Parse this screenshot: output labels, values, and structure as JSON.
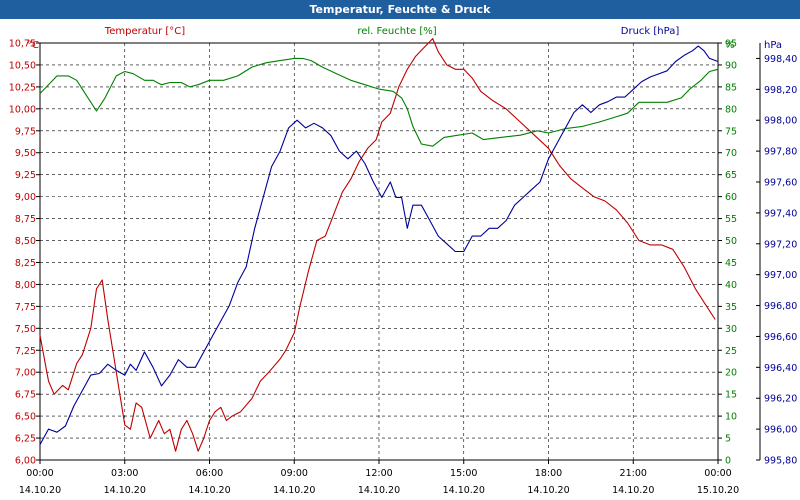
{
  "chart_data": {
    "type": "line",
    "title": "Temperatur, Feuchte & Druck",
    "colors": {
      "temperature": "#c00000",
      "humidity": "#008000",
      "pressure": "#000099",
      "title_bar": "#1f5fa0"
    },
    "axes": {
      "temperature": {
        "label": "Temperatur [°C]",
        "unit": "°C",
        "ylim": [
          6.0,
          10.75
        ],
        "ticks": [
          "6,00",
          "6,25",
          "6,50",
          "6,75",
          "7,00",
          "7,25",
          "7,50",
          "7,75",
          "8,00",
          "8,25",
          "8,50",
          "8,75",
          "9,00",
          "9,25",
          "9,50",
          "9,75",
          "10,00",
          "10,25",
          "10,50",
          "10,75"
        ]
      },
      "humidity": {
        "label": "rel. Feuchte [%]",
        "unit": "%",
        "ylim": [
          0,
          95
        ],
        "ticks": [
          "0",
          "5",
          "10",
          "15",
          "20",
          "25",
          "30",
          "35",
          "40",
          "45",
          "50",
          "55",
          "60",
          "65",
          "70",
          "75",
          "80",
          "85",
          "90",
          "95"
        ]
      },
      "pressure": {
        "label": "Druck [hPa]",
        "unit": "hPa",
        "ylim": [
          995.8,
          998.5
        ],
        "ticks": [
          "995,80",
          "996,00",
          "996,20",
          "996,40",
          "996,60",
          "996,80",
          "997,00",
          "997,20",
          "997,40",
          "997,60",
          "997,80",
          "998,00",
          "998,20",
          "998,40"
        ]
      }
    },
    "x_labels": [
      {
        "time": "00:00",
        "date": "14.10.20"
      },
      {
        "time": "03:00",
        "date": "14.10.20"
      },
      {
        "time": "06:00",
        "date": "14.10.20"
      },
      {
        "time": "09:00",
        "date": "14.10.20"
      },
      {
        "time": "12:00",
        "date": "14.10.20"
      },
      {
        "time": "15:00",
        "date": "14.10.20"
      },
      {
        "time": "18:00",
        "date": "14.10.20"
      },
      {
        "time": "21:00",
        "date": "14.10.20"
      },
      {
        "time": "00:00",
        "date": "15.10.20"
      }
    ],
    "x_range_hours": [
      0,
      24
    ],
    "series": [
      {
        "name": "Temperatur",
        "axis": "temperature",
        "points": [
          [
            0,
            7.42
          ],
          [
            0.3,
            6.9
          ],
          [
            0.5,
            6.75
          ],
          [
            0.8,
            6.85
          ],
          [
            1.0,
            6.8
          ],
          [
            1.3,
            7.1
          ],
          [
            1.5,
            7.2
          ],
          [
            1.8,
            7.5
          ],
          [
            2.0,
            7.95
          ],
          [
            2.2,
            8.05
          ],
          [
            2.4,
            7.6
          ],
          [
            2.6,
            7.2
          ],
          [
            2.8,
            6.8
          ],
          [
            3.0,
            6.4
          ],
          [
            3.2,
            6.35
          ],
          [
            3.4,
            6.65
          ],
          [
            3.6,
            6.6
          ],
          [
            3.9,
            6.25
          ],
          [
            4.2,
            6.45
          ],
          [
            4.4,
            6.3
          ],
          [
            4.6,
            6.35
          ],
          [
            4.8,
            6.1
          ],
          [
            5.0,
            6.35
          ],
          [
            5.2,
            6.45
          ],
          [
            5.4,
            6.3
          ],
          [
            5.6,
            6.1
          ],
          [
            5.8,
            6.25
          ],
          [
            6.0,
            6.45
          ],
          [
            6.2,
            6.55
          ],
          [
            6.4,
            6.6
          ],
          [
            6.6,
            6.45
          ],
          [
            6.8,
            6.5
          ],
          [
            7.1,
            6.55
          ],
          [
            7.5,
            6.7
          ],
          [
            7.8,
            6.9
          ],
          [
            8.1,
            7.0
          ],
          [
            8.5,
            7.15
          ],
          [
            8.7,
            7.25
          ],
          [
            9.0,
            7.45
          ],
          [
            9.2,
            7.75
          ],
          [
            9.5,
            8.15
          ],
          [
            9.8,
            8.5
          ],
          [
            10.1,
            8.55
          ],
          [
            10.4,
            8.8
          ],
          [
            10.7,
            9.05
          ],
          [
            11.0,
            9.2
          ],
          [
            11.3,
            9.4
          ],
          [
            11.6,
            9.55
          ],
          [
            11.9,
            9.65
          ],
          [
            12.1,
            9.85
          ],
          [
            12.4,
            9.95
          ],
          [
            12.7,
            10.25
          ],
          [
            13.0,
            10.45
          ],
          [
            13.3,
            10.6
          ],
          [
            13.6,
            10.7
          ],
          [
            13.9,
            10.8
          ],
          [
            14.1,
            10.65
          ],
          [
            14.4,
            10.5
          ],
          [
            14.7,
            10.45
          ],
          [
            15.0,
            10.45
          ],
          [
            15.3,
            10.35
          ],
          [
            15.6,
            10.2
          ],
          [
            16.0,
            10.1
          ],
          [
            16.5,
            10.0
          ],
          [
            17.0,
            9.85
          ],
          [
            17.5,
            9.7
          ],
          [
            18.0,
            9.55
          ],
          [
            18.4,
            9.35
          ],
          [
            18.8,
            9.2
          ],
          [
            19.2,
            9.1
          ],
          [
            19.6,
            9.0
          ],
          [
            20.0,
            8.95
          ],
          [
            20.4,
            8.85
          ],
          [
            20.8,
            8.7
          ],
          [
            21.2,
            8.5
          ],
          [
            21.6,
            8.45
          ],
          [
            22.0,
            8.45
          ],
          [
            22.4,
            8.4
          ],
          [
            22.8,
            8.2
          ],
          [
            23.2,
            7.95
          ],
          [
            23.6,
            7.75
          ],
          [
            23.9,
            7.6
          ]
        ]
      },
      {
        "name": "rel. Feuchte",
        "axis": "humidity",
        "points": [
          [
            0,
            83.5
          ],
          [
            0.3,
            85.5
          ],
          [
            0.6,
            87.5
          ],
          [
            1.0,
            87.5
          ],
          [
            1.3,
            86.5
          ],
          [
            1.7,
            82.5
          ],
          [
            2.0,
            79.5
          ],
          [
            2.3,
            82.5
          ],
          [
            2.7,
            87.5
          ],
          [
            3.0,
            88.5
          ],
          [
            3.3,
            88.0
          ],
          [
            3.7,
            86.5
          ],
          [
            4.0,
            86.5
          ],
          [
            4.3,
            85.5
          ],
          [
            4.6,
            86.0
          ],
          [
            5.0,
            86.0
          ],
          [
            5.3,
            85.0
          ],
          [
            5.6,
            85.5
          ],
          [
            6.0,
            86.5
          ],
          [
            6.5,
            86.5
          ],
          [
            7.0,
            87.5
          ],
          [
            7.5,
            89.5
          ],
          [
            8.0,
            90.5
          ],
          [
            8.5,
            91.0
          ],
          [
            9.0,
            91.5
          ],
          [
            9.3,
            91.5
          ],
          [
            9.6,
            91.0
          ],
          [
            10.0,
            89.5
          ],
          [
            10.5,
            88.0
          ],
          [
            11.0,
            86.5
          ],
          [
            11.5,
            85.5
          ],
          [
            12.0,
            84.5
          ],
          [
            12.5,
            84.0
          ],
          [
            12.8,
            82.5
          ],
          [
            13.0,
            80.0
          ],
          [
            13.2,
            76.0
          ],
          [
            13.5,
            72.0
          ],
          [
            13.9,
            71.5
          ],
          [
            14.3,
            73.5
          ],
          [
            14.8,
            74.0
          ],
          [
            15.3,
            74.5
          ],
          [
            15.7,
            73.0
          ],
          [
            16.3,
            73.5
          ],
          [
            17.0,
            74.0
          ],
          [
            17.6,
            75.0
          ],
          [
            18.0,
            74.5
          ],
          [
            18.6,
            75.5
          ],
          [
            19.2,
            76.0
          ],
          [
            19.8,
            77.0
          ],
          [
            20.3,
            78.0
          ],
          [
            20.8,
            79.0
          ],
          [
            21.2,
            81.5
          ],
          [
            21.7,
            81.5
          ],
          [
            22.2,
            81.5
          ],
          [
            22.7,
            82.5
          ],
          [
            23.0,
            84.5
          ],
          [
            23.4,
            86.5
          ],
          [
            23.7,
            88.5
          ],
          [
            24.0,
            89.0
          ]
        ]
      },
      {
        "name": "Druck",
        "axis": "pressure",
        "points": [
          [
            0,
            995.9
          ],
          [
            0.3,
            996.0
          ],
          [
            0.6,
            995.98
          ],
          [
            0.9,
            996.02
          ],
          [
            1.2,
            996.15
          ],
          [
            1.5,
            996.25
          ],
          [
            1.8,
            996.35
          ],
          [
            2.1,
            996.36
          ],
          [
            2.4,
            996.42
          ],
          [
            2.7,
            996.38
          ],
          [
            3.0,
            996.35
          ],
          [
            3.2,
            996.42
          ],
          [
            3.4,
            996.38
          ],
          [
            3.7,
            996.5
          ],
          [
            4.0,
            996.4
          ],
          [
            4.3,
            996.28
          ],
          [
            4.6,
            996.35
          ],
          [
            4.9,
            996.45
          ],
          [
            5.2,
            996.4
          ],
          [
            5.5,
            996.4
          ],
          [
            5.8,
            996.5
          ],
          [
            6.1,
            996.6
          ],
          [
            6.4,
            996.7
          ],
          [
            6.7,
            996.8
          ],
          [
            7.0,
            996.95
          ],
          [
            7.3,
            997.05
          ],
          [
            7.6,
            997.3
          ],
          [
            7.9,
            997.5
          ],
          [
            8.2,
            997.7
          ],
          [
            8.5,
            997.8
          ],
          [
            8.8,
            997.95
          ],
          [
            9.1,
            998.0
          ],
          [
            9.4,
            997.95
          ],
          [
            9.7,
            997.98
          ],
          [
            10.0,
            997.95
          ],
          [
            10.3,
            997.9
          ],
          [
            10.6,
            997.8
          ],
          [
            10.9,
            997.75
          ],
          [
            11.2,
            997.8
          ],
          [
            11.5,
            997.72
          ],
          [
            11.8,
            997.6
          ],
          [
            12.1,
            997.5
          ],
          [
            12.4,
            997.6
          ],
          [
            12.6,
            997.5
          ],
          [
            12.8,
            997.5
          ],
          [
            13.0,
            997.3
          ],
          [
            13.2,
            997.45
          ],
          [
            13.5,
            997.45
          ],
          [
            13.8,
            997.35
          ],
          [
            14.1,
            997.25
          ],
          [
            14.4,
            997.2
          ],
          [
            14.7,
            997.15
          ],
          [
            15.0,
            997.15
          ],
          [
            15.3,
            997.25
          ],
          [
            15.6,
            997.25
          ],
          [
            15.9,
            997.3
          ],
          [
            16.2,
            997.3
          ],
          [
            16.5,
            997.35
          ],
          [
            16.8,
            997.45
          ],
          [
            17.1,
            997.5
          ],
          [
            17.4,
            997.55
          ],
          [
            17.7,
            997.6
          ],
          [
            18.0,
            997.75
          ],
          [
            18.3,
            997.85
          ],
          [
            18.6,
            997.95
          ],
          [
            18.9,
            998.05
          ],
          [
            19.2,
            998.1
          ],
          [
            19.5,
            998.05
          ],
          [
            19.8,
            998.1
          ],
          [
            20.1,
            998.12
          ],
          [
            20.4,
            998.15
          ],
          [
            20.7,
            998.15
          ],
          [
            21.0,
            998.2
          ],
          [
            21.3,
            998.25
          ],
          [
            21.6,
            998.28
          ],
          [
            21.9,
            998.3
          ],
          [
            22.2,
            998.32
          ],
          [
            22.5,
            998.38
          ],
          [
            22.8,
            998.42
          ],
          [
            23.1,
            998.45
          ],
          [
            23.3,
            998.48
          ],
          [
            23.5,
            998.45
          ],
          [
            23.7,
            998.4
          ],
          [
            24.0,
            998.38
          ]
        ]
      }
    ]
  }
}
